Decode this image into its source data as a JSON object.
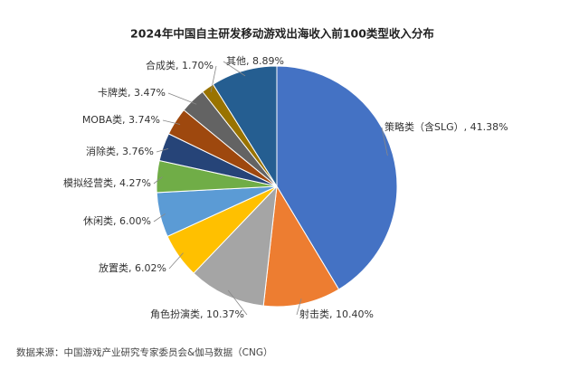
{
  "chart_data": {
    "type": "pie",
    "title": "2024年中国自主研发移动游戏出海收入前100类型收入分布",
    "categories": [
      "策略类（含SLG）",
      "射击类",
      "角色扮演类",
      "放置类",
      "休闲类",
      "模拟经营类",
      "消除类",
      "MOBA类",
      "卡牌类",
      "合成类",
      "其他"
    ],
    "values": [
      41.38,
      10.4,
      10.37,
      6.02,
      6.0,
      4.27,
      3.76,
      3.74,
      3.47,
      1.7,
      8.89
    ],
    "value_labels": [
      "41.38%",
      "10.40%",
      "10.37%",
      "6.02%",
      "6.00%",
      "4.27%",
      "3.76%",
      "3.74%",
      "3.47%",
      "1.70%",
      "8.89%"
    ],
    "colors": [
      "#4472c4",
      "#ed7d31",
      "#a5a5a5",
      "#ffc000",
      "#5b9bd5",
      "#70ad47",
      "#264478",
      "#9e480e",
      "#636363",
      "#997300",
      "#255e91"
    ],
    "source": "数据来源：中国游戏产业研究专家委员会&伽马数据（CNG）"
  }
}
